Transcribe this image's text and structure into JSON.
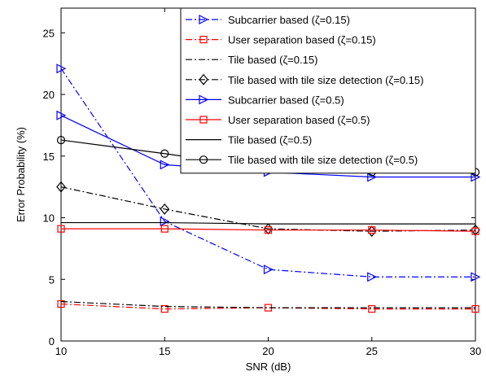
{
  "chart_data": {
    "type": "line",
    "title": "",
    "xlabel": "SNR (dB)",
    "ylabel": "Error Probability (%)",
    "xlim": [
      10,
      30
    ],
    "ylim": [
      0,
      27
    ],
    "xticks": [
      10,
      15,
      20,
      25,
      30
    ],
    "yticks": [
      0,
      5,
      10,
      15,
      20,
      25
    ],
    "grid": false,
    "legend_position": "top-right",
    "x": [
      10,
      15,
      20,
      25,
      30
    ],
    "series": [
      {
        "name": "Subcarrier based (ζ=0.15)",
        "values": [
          22.1,
          9.7,
          5.8,
          5.2,
          5.2
        ],
        "color": "#0000ff",
        "dash": "dashdot",
        "marker": "triangle-right"
      },
      {
        "name": "User separation based (ζ=0.15)",
        "values": [
          3.0,
          2.6,
          2.7,
          2.6,
          2.6
        ],
        "color": "#ff0000",
        "dash": "dashdot",
        "marker": "square"
      },
      {
        "name": "Tile based (ζ=0.15)",
        "values": [
          3.2,
          2.8,
          2.7,
          2.7,
          2.7
        ],
        "color": "#000000",
        "dash": "dashdot",
        "marker": "none"
      },
      {
        "name": "Tile based with tile size detection (ζ=0.15)",
        "values": [
          12.5,
          10.7,
          9.1,
          8.9,
          9.0
        ],
        "color": "#000000",
        "dash": "dashdot",
        "marker": "diamond"
      },
      {
        "name": "Subcarrier based (ζ=0.5)",
        "values": [
          18.3,
          14.3,
          13.7,
          13.3,
          13.3
        ],
        "color": "#0000ff",
        "dash": "solid",
        "marker": "triangle-right"
      },
      {
        "name": "User separation based (ζ=0.5)",
        "values": [
          9.1,
          9.1,
          9.0,
          9.0,
          8.9
        ],
        "color": "#ff0000",
        "dash": "solid",
        "marker": "square"
      },
      {
        "name": "Tile based (ζ=0.5)",
        "values": [
          9.6,
          9.6,
          9.5,
          9.5,
          9.5
        ],
        "color": "#000000",
        "dash": "solid",
        "marker": "none"
      },
      {
        "name": "Tile based with tile size detection (ζ=0.5)",
        "values": [
          16.3,
          15.2,
          14.0,
          13.7,
          13.7
        ],
        "color": "#000000",
        "dash": "solid",
        "marker": "circle"
      }
    ]
  }
}
